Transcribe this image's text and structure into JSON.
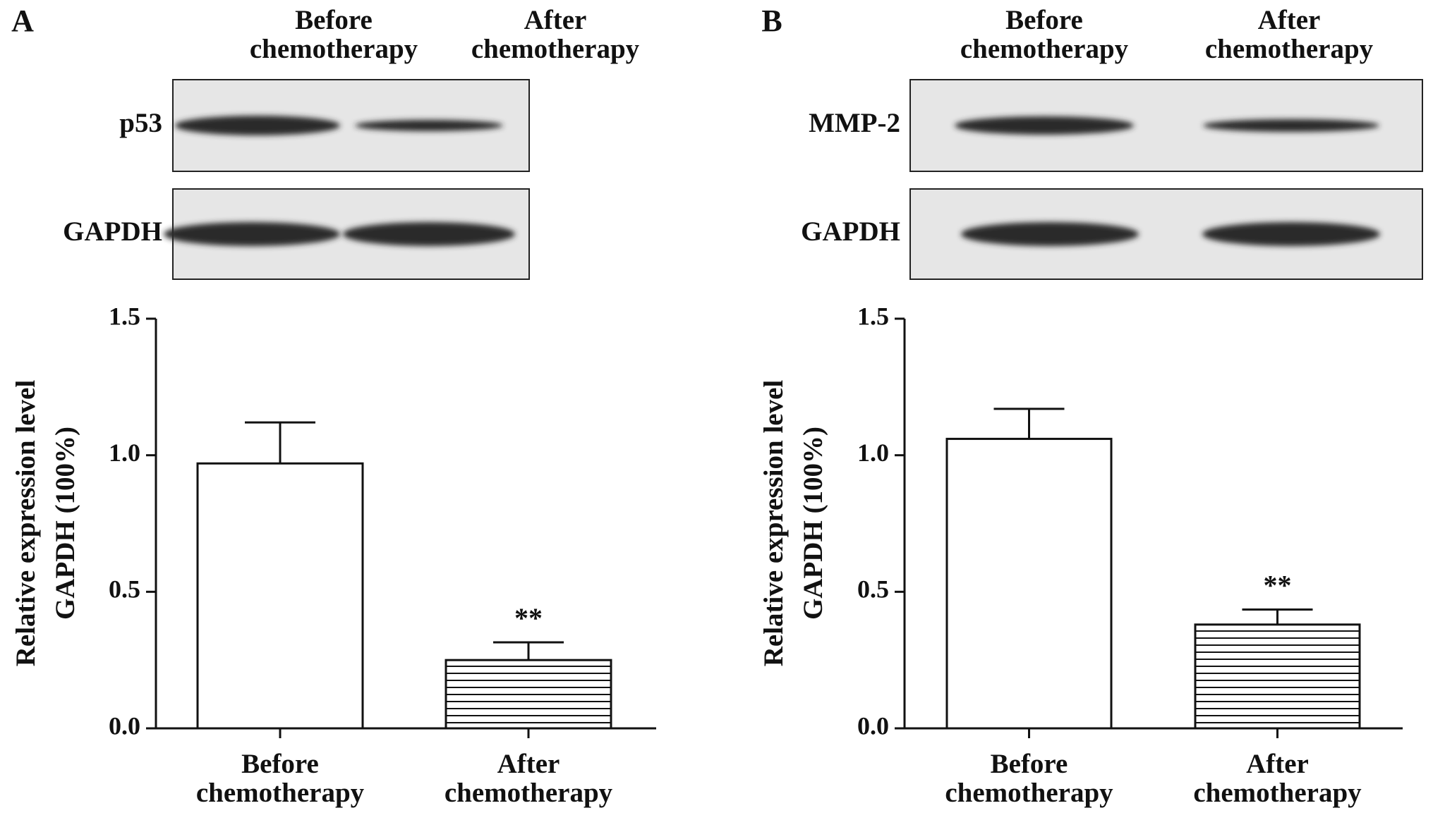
{
  "chart_data": [
    {
      "type": "bar",
      "panel": "A",
      "blot": {
        "columns": [
          "Before chemotherapy",
          "After chemotherapy"
        ],
        "rows": [
          "p53",
          "GAPDH"
        ]
      },
      "ylabel": [
        "Relative expression level",
        "GAPDH (100%)"
      ],
      "categories": [
        "Before chemotherapy",
        "After chemotherapy"
      ],
      "values": [
        0.97,
        0.25
      ],
      "errors": [
        0.15,
        0.065
      ],
      "significance": [
        null,
        "**"
      ],
      "patterns": [
        "none",
        "horizontal-lines"
      ],
      "color": "#111111",
      "ylim": [
        0,
        1.5
      ],
      "yticks": [
        {
          "value": 0,
          "label": "0.0"
        },
        0.5,
        {
          "value": 1,
          "label": "1.0"
        },
        1.5
      ]
    },
    {
      "type": "bar",
      "panel": "B",
      "blot": {
        "columns": [
          "Before chemotherapy",
          "After chemotherapy"
        ],
        "rows": [
          "MMP-2",
          "GAPDH"
        ]
      },
      "ylabel": [
        "Relative expression level",
        "GAPDH (100%)"
      ],
      "categories": [
        "Before chemotherapy",
        "After chemotherapy"
      ],
      "values": [
        1.06,
        0.38
      ],
      "errors": [
        0.11,
        0.055
      ],
      "significance": [
        null,
        "**"
      ],
      "patterns": [
        "none",
        "horizontal-lines"
      ],
      "color": "#111111",
      "ylim": [
        0,
        1.5
      ],
      "yticks": [
        {
          "value": 0,
          "label": "0.0"
        },
        0.5,
        {
          "value": 1,
          "label": "1.0"
        },
        1.5
      ]
    }
  ]
}
